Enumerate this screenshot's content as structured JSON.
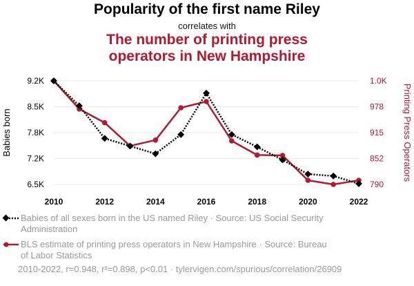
{
  "header": {
    "title": "Popularity of the first name Riley",
    "subtitle": "correlates with",
    "title2_line1": "The number of printing press",
    "title2_line2": "operators in New Hampshire"
  },
  "colors": {
    "series1": "#000000",
    "series2": "#b5192d",
    "axis_text": "#000000",
    "legend_text": "#9a9a9a"
  },
  "chart_data": {
    "type": "line",
    "x": [
      2010,
      2011,
      2012,
      2013,
      2014,
      2015,
      2016,
      2017,
      2018,
      2019,
      2020,
      2021,
      2022
    ],
    "xticks": [
      "2010",
      "2012",
      "2014",
      "2016",
      "2018",
      "2020",
      "2022"
    ],
    "xlim": [
      2010,
      2022
    ],
    "left_axis": {
      "label": "Babies born",
      "ticks": [
        "9.2K",
        "8.5K",
        "7.8K",
        "7.2K",
        "6.5K"
      ],
      "ylim": [
        6500,
        9200
      ]
    },
    "right_axis": {
      "label": "Printing Press Operators",
      "ticks": [
        "1.0K",
        "978",
        "915",
        "852",
        "790"
      ],
      "ylim": [
        790,
        1040
      ]
    },
    "series": [
      {
        "axis": "left",
        "values": [
          9200,
          8550,
          7700,
          7500,
          7300,
          7800,
          8880,
          7800,
          7480,
          7140,
          6770,
          6720,
          6520
        ]
      },
      {
        "axis": "right",
        "values": [
          1040,
          972,
          939,
          883,
          897,
          975,
          990,
          895,
          861,
          860,
          800,
          790,
          800
        ]
      }
    ],
    "grid": true
  },
  "legend": {
    "items": [
      {
        "line1": "Babies of all sexes born in the US named Riley · Source: US Social Security",
        "line2": "Administration"
      },
      {
        "line1": "BLS estimate of printing press operators in New Hampshire · Source: Bureau",
        "line2": "of Labor Statistics"
      }
    ]
  },
  "footer": {
    "text": "2010-2022, r=0.948, r²=0.898, p<0.01 · tylervigen.com/spurious/correlation/26909"
  }
}
